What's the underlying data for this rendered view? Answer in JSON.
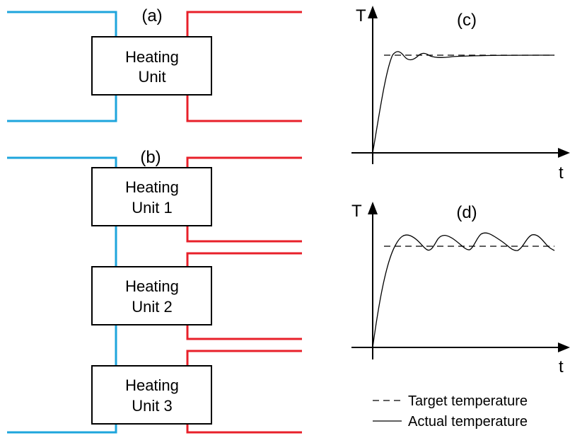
{
  "colors": {
    "cold_line": "#1ea5dc",
    "hot_line": "#e8202a",
    "axis": "#000000",
    "box_stroke": "#000000"
  },
  "panel_a": {
    "label": "(a)",
    "unit_line1": "Heating",
    "unit_line2": "Unit"
  },
  "panel_b": {
    "label": "(b)",
    "units": [
      {
        "line1": "Heating",
        "line2": "Unit 1"
      },
      {
        "line1": "Heating",
        "line2": "Unit 2"
      },
      {
        "line1": "Heating",
        "line2": "Unit 3"
      }
    ]
  },
  "panel_c": {
    "label": "(c)",
    "y_axis_label": "T",
    "x_axis_label": "t"
  },
  "panel_d": {
    "label": "(d)",
    "y_axis_label": "T",
    "x_axis_label": "t"
  },
  "legend": {
    "dashed_label": "Target temperature",
    "solid_label": "Actual temperature"
  }
}
